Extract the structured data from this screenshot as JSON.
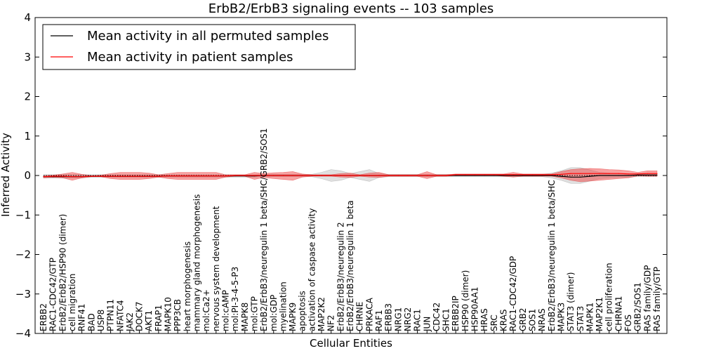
{
  "chart_data": {
    "type": "line",
    "title": "ErbB2/ErbB3 signaling events -- 103 samples",
    "xlabel": "Cellular Entities",
    "ylabel": "Inferred Activity",
    "ylim": [
      -4,
      4
    ],
    "yticks": [
      -4,
      -3,
      -2,
      -1,
      0,
      1,
      2,
      3,
      4
    ],
    "ytick_labels": [
      "−4",
      "−3",
      "−2",
      "−1",
      "0",
      "1",
      "2",
      "3",
      "4"
    ],
    "legend_position": "top-left",
    "categories": [
      "ERBB2",
      "RAC1-CDC42/GTP",
      "ErbB2/ErbB2/HSP90 (dimer)",
      "cell migration",
      "RNF41",
      "BAD",
      "USP8",
      "PTPN11",
      "NFATC4",
      "JAK2",
      "DOCK7",
      "AKT1",
      "FRAP1",
      "MAPK10",
      "PPP3CB",
      "heart morphogenesis",
      "mammary gland morphogenesis",
      "mol:Ca2+",
      "nervous system development",
      "mol:cAMP",
      "mol:PI-3-4-5-P3",
      "MAPK8",
      "mol:GTP",
      "ErbB2/ErbB3/neuregulin 1 beta/SHC/GRB2/SOS1",
      "mol:GDP",
      "myelination",
      "MAPK9",
      "apoptosis",
      "activation of caspase activity",
      "MAP2K2",
      "NF2",
      "ErbB2/ErbB3/neuregulin 2",
      "ErbB2/ErbB3/neuregulin 1 beta",
      "CHRNE",
      "PRKACA",
      "RAF1",
      "ERBB3",
      "NRG1",
      "NRG2",
      "RAC1",
      "JUN",
      "CDC42",
      "SHC1",
      "ERBB2IP",
      "HSP90 (dimer)",
      "HSP90AA1",
      "HRAS",
      "SRC",
      "KRAS",
      "RAC1-CDC42/GDP",
      "GRB2",
      "SOS1",
      "NRAS",
      "ErbB2/ErbB3/neuregulin 1 beta/SHC",
      "MAPK3",
      "STAT3 (dimer)",
      "STAT3",
      "MAPK1",
      "MAP2K1",
      "cell proliferation",
      "CHRNA1",
      "FOS",
      "GRB2/SOS1",
      "RAS family/GDP",
      "RAS family/GTP"
    ],
    "series": [
      {
        "name": "Mean activity in all permuted samples",
        "color": "#000000",
        "values": [
          -0.03,
          -0.03,
          -0.03,
          -0.03,
          -0.03,
          -0.02,
          -0.02,
          -0.02,
          -0.02,
          -0.02,
          -0.02,
          -0.02,
          -0.02,
          -0.01,
          -0.01,
          -0.01,
          -0.01,
          -0.01,
          -0.01,
          -0.01,
          -0.01,
          -0.01,
          -0.01,
          0.0,
          0.0,
          0.0,
          0.0,
          0.0,
          0.0,
          0.0,
          0.0,
          0.0,
          0.0,
          0.0,
          0.0,
          0.0,
          0.0,
          0.0,
          0.0,
          0.0,
          0.0,
          0.0,
          0.0,
          0.0,
          0.0,
          0.0,
          0.0,
          0.0,
          0.0,
          0.0,
          0.0,
          0.0,
          0.0,
          0.0,
          -0.02,
          -0.04,
          -0.04,
          -0.02,
          0.0,
          0.0,
          0.0,
          0.0,
          0.01,
          0.01,
          0.01
        ],
        "band_low": [
          -0.06,
          -0.06,
          -0.06,
          -0.06,
          -0.06,
          -0.05,
          -0.05,
          -0.05,
          -0.05,
          -0.05,
          -0.05,
          -0.05,
          -0.05,
          -0.04,
          -0.04,
          -0.04,
          -0.04,
          -0.04,
          -0.04,
          -0.04,
          -0.04,
          -0.04,
          -0.04,
          -0.03,
          -0.03,
          -0.03,
          -0.03,
          -0.03,
          -0.03,
          -0.08,
          -0.15,
          -0.12,
          -0.05,
          -0.1,
          -0.15,
          -0.05,
          -0.03,
          -0.03,
          -0.03,
          -0.03,
          -0.03,
          -0.03,
          -0.03,
          -0.03,
          -0.03,
          -0.03,
          -0.03,
          -0.03,
          -0.03,
          -0.03,
          -0.03,
          -0.03,
          -0.03,
          -0.06,
          -0.12,
          -0.2,
          -0.2,
          -0.14,
          -0.08,
          -0.06,
          -0.05,
          -0.04,
          -0.03,
          -0.03,
          -0.03
        ],
        "band_high": [
          0.02,
          0.02,
          0.02,
          0.02,
          0.02,
          0.02,
          0.02,
          0.02,
          0.02,
          0.02,
          0.02,
          0.02,
          0.02,
          0.02,
          0.02,
          0.02,
          0.02,
          0.02,
          0.02,
          0.02,
          0.02,
          0.02,
          0.02,
          0.03,
          0.03,
          0.03,
          0.03,
          0.03,
          0.03,
          0.08,
          0.15,
          0.12,
          0.05,
          0.1,
          0.15,
          0.05,
          0.03,
          0.03,
          0.03,
          0.03,
          0.03,
          0.03,
          0.03,
          0.03,
          0.03,
          0.03,
          0.03,
          0.03,
          0.03,
          0.03,
          0.03,
          0.03,
          0.03,
          0.06,
          0.12,
          0.2,
          0.2,
          0.14,
          0.08,
          0.06,
          0.05,
          0.04,
          0.05,
          0.05,
          0.05
        ]
      },
      {
        "name": "Mean activity in patient samples",
        "color": "#ff0000",
        "values": [
          -0.03,
          -0.02,
          -0.02,
          -0.03,
          -0.03,
          -0.02,
          -0.02,
          -0.02,
          -0.02,
          -0.02,
          -0.02,
          -0.02,
          -0.02,
          -0.01,
          -0.01,
          -0.01,
          -0.01,
          -0.01,
          -0.01,
          -0.01,
          0.0,
          0.0,
          0.0,
          0.0,
          0.0,
          0.0,
          0.0,
          0.0,
          0.0,
          0.0,
          0.0,
          0.0,
          0.0,
          0.0,
          0.0,
          0.0,
          0.0,
          0.0,
          0.0,
          0.0,
          0.0,
          0.0,
          0.0,
          0.02,
          0.02,
          0.02,
          0.02,
          0.02,
          0.02,
          0.02,
          0.02,
          0.02,
          0.02,
          0.02,
          0.03,
          0.05,
          0.05,
          0.05,
          0.05,
          0.05,
          0.05,
          0.04,
          0.04,
          0.05,
          0.05
        ],
        "band_low": [
          -0.06,
          -0.05,
          -0.06,
          -0.12,
          -0.06,
          -0.03,
          -0.03,
          -0.08,
          -0.1,
          -0.1,
          -0.1,
          -0.08,
          -0.04,
          -0.08,
          -0.1,
          -0.1,
          -0.1,
          -0.1,
          -0.1,
          -0.04,
          -0.02,
          -0.02,
          -0.1,
          -0.05,
          -0.08,
          -0.1,
          -0.12,
          -0.04,
          -0.02,
          -0.02,
          -0.02,
          -0.04,
          -0.05,
          -0.02,
          -0.04,
          -0.05,
          -0.02,
          -0.02,
          -0.02,
          -0.02,
          -0.08,
          -0.02,
          -0.02,
          0.0,
          0.0,
          0.0,
          0.0,
          0.0,
          -0.02,
          -0.04,
          -0.02,
          -0.02,
          -0.02,
          -0.02,
          -0.06,
          -0.12,
          -0.16,
          -0.14,
          -0.12,
          -0.1,
          -0.08,
          -0.06,
          -0.01,
          -0.02,
          -0.02
        ],
        "band_high": [
          0.0,
          0.01,
          0.04,
          0.08,
          0.03,
          0.0,
          0.01,
          0.05,
          0.08,
          0.08,
          0.08,
          0.06,
          0.02,
          0.05,
          0.08,
          0.08,
          0.08,
          0.08,
          0.08,
          0.02,
          0.02,
          0.02,
          0.08,
          0.05,
          0.07,
          0.08,
          0.1,
          0.04,
          0.02,
          0.02,
          0.02,
          0.05,
          0.06,
          0.02,
          0.06,
          0.08,
          0.02,
          0.02,
          0.02,
          0.02,
          0.1,
          0.02,
          0.02,
          0.04,
          0.04,
          0.04,
          0.04,
          0.04,
          0.04,
          0.08,
          0.04,
          0.04,
          0.04,
          0.04,
          0.1,
          0.15,
          0.17,
          0.18,
          0.17,
          0.15,
          0.14,
          0.12,
          0.08,
          0.12,
          0.12
        ]
      }
    ]
  }
}
